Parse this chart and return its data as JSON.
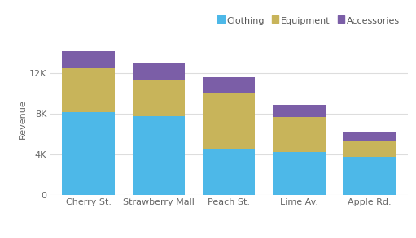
{
  "categories": [
    "Cherry St.",
    "Strawberry Mall",
    "Peach St.",
    "Lime Av.",
    "Apple Rd."
  ],
  "clothing": [
    8200,
    7800,
    4500,
    4300,
    3800
  ],
  "equipment": [
    4300,
    3500,
    5500,
    3400,
    1500
  ],
  "accessories": [
    1700,
    1700,
    1600,
    1200,
    1000
  ],
  "colors": {
    "clothing": "#4db8e8",
    "equipment": "#c8b45a",
    "accessories": "#7b5ea7"
  },
  "ylabel": "Revenue",
  "yticks": [
    0,
    4000,
    8000,
    12000
  ],
  "ytick_labels": [
    "0",
    "4K",
    "8K",
    "12K"
  ],
  "ylim": [
    0,
    15000
  ],
  "legend_labels": [
    "Clothing",
    "Equipment",
    "Accessories"
  ],
  "background_color": "#ffffff",
  "grid_color": "#dddddd",
  "bar_width": 0.75
}
